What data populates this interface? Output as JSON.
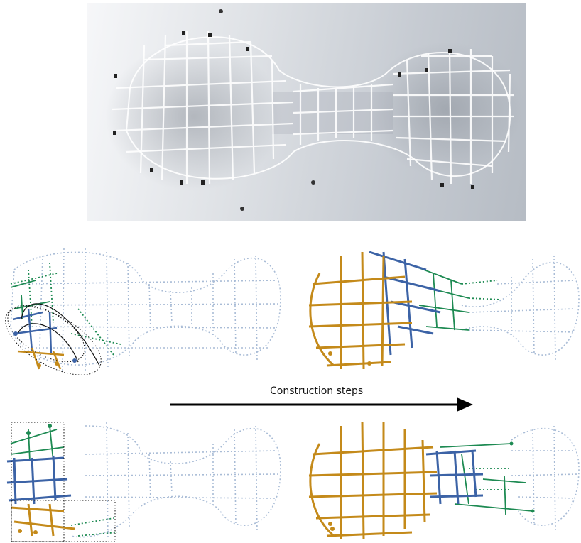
{
  "caption": "Construction steps",
  "colors": {
    "gold": "#c48a1a",
    "blue": "#3c63a6",
    "green": "#1d8a52",
    "faint": "#a9bcd6",
    "arrow": "#000000"
  }
}
